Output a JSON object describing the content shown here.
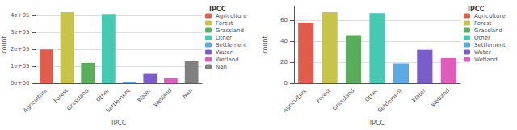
{
  "chart_data": [
    {
      "type": "bar",
      "categories": [
        "Agriculture",
        "Forest",
        "Grassland",
        "Other",
        "Settlement",
        "Water",
        "Wetland",
        "Nan"
      ],
      "values": [
        200000,
        420000,
        120000,
        410000,
        8000,
        55000,
        30000,
        130000
      ],
      "colors": [
        "#e05c4b",
        "#c8c44a",
        "#5aad5a",
        "#45c9b0",
        "#5baae8",
        "#7b5dc9",
        "#e05cba",
        "#808080"
      ],
      "xlabel": "IPCC",
      "ylabel": "count",
      "legend_title": "IPCC",
      "legend": "upper right",
      "ylim": [
        0,
        453600
      ],
      "yticks": [
        {
          "value": 0,
          "label": "0e+00"
        },
        {
          "value": 100000,
          "label": "1e+05"
        },
        {
          "value": 200000,
          "label": "2e+05"
        },
        {
          "value": 300000,
          "label": "3e+05"
        },
        {
          "value": 400000,
          "label": "4e+05"
        }
      ],
      "grid": true
    },
    {
      "type": "bar",
      "categories": [
        "Agriculture",
        "Forest",
        "Grassland",
        "Other",
        "Settlement",
        "Water",
        "Wetland"
      ],
      "values": [
        58,
        68,
        46,
        67,
        19,
        32,
        24
      ],
      "colors": [
        "#e05c4b",
        "#c8c44a",
        "#5aad5a",
        "#45c9b0",
        "#5baae8",
        "#7b5dc9",
        "#e05cba"
      ],
      "xlabel": "IPCC",
      "ylabel": "count",
      "legend_title": "IPCC",
      "legend": "upper right",
      "ylim": [
        0,
        73.44
      ],
      "yticks": [
        0,
        20,
        40,
        60
      ],
      "grid": true
    }
  ]
}
